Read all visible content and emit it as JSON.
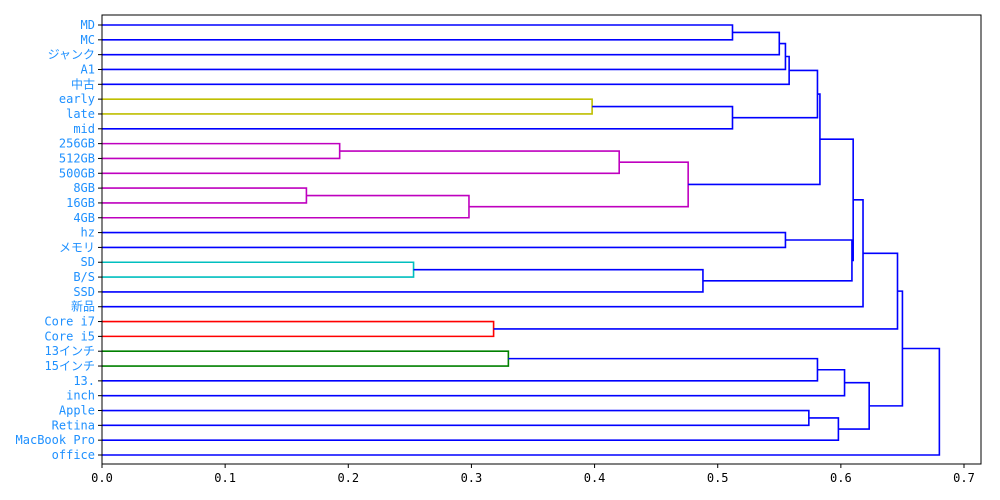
{
  "chart_data": {
    "type": "dendrogram",
    "orientation": "left",
    "title": "",
    "xlabel": "",
    "ylabel": "",
    "xlim": [
      0.0,
      0.714
    ],
    "xticks": [
      0.0,
      0.1,
      0.2,
      0.3,
      0.4,
      0.5,
      0.6,
      0.7
    ],
    "xtick_labels": [
      "0.0",
      "0.1",
      "0.2",
      "0.3",
      "0.4",
      "0.5",
      "0.6",
      "0.7"
    ],
    "leaf_label_color": "#1e90ff",
    "leaves": [
      "MD",
      "MC",
      "ジャンク",
      "A1",
      "中古",
      "early",
      "late",
      "mid",
      "256GB",
      "512GB",
      "500GB",
      "8GB",
      "16GB",
      "4GB",
      "hz",
      "メモリ",
      "SD",
      "B/S",
      "SSD",
      "新品",
      "Core i7",
      "Core i5",
      "13インチ",
      "15インチ",
      "13.",
      "inch",
      "Apple",
      "Retina",
      "MacBook Pro",
      "office"
    ],
    "colors": {
      "default": "#0000ff",
      "yellow": "#bfbf00",
      "magenta": "#bf00bf",
      "cyan": "#00bfbf",
      "red": "#ff0000",
      "green": "#008000"
    },
    "merges": [
      {
        "id": "c0",
        "left": "MD",
        "right": "MC",
        "height": 0.512,
        "color": "default"
      },
      {
        "id": "c1",
        "left": "c0",
        "right": "ジャンク",
        "height": 0.55,
        "color": "default"
      },
      {
        "id": "c2",
        "left": "c1",
        "right": "A1",
        "height": 0.555,
        "color": "default"
      },
      {
        "id": "c3",
        "left": "c2",
        "right": "中古",
        "height": 0.558,
        "color": "default"
      },
      {
        "id": "c4",
        "left": "early",
        "right": "late",
        "height": 0.398,
        "color": "yellow"
      },
      {
        "id": "c5",
        "left": "c4",
        "right": "mid",
        "height": 0.512,
        "color": "default"
      },
      {
        "id": "c6",
        "left": "c3",
        "right": "c5",
        "height": 0.581,
        "color": "default"
      },
      {
        "id": "c7",
        "left": "256GB",
        "right": "512GB",
        "height": 0.193,
        "color": "magenta"
      },
      {
        "id": "c8",
        "left": "c7",
        "right": "500GB",
        "height": 0.42,
        "color": "magenta"
      },
      {
        "id": "c9",
        "left": "8GB",
        "right": "16GB",
        "height": 0.166,
        "color": "magenta"
      },
      {
        "id": "c10",
        "left": "c9",
        "right": "4GB",
        "height": 0.298,
        "color": "magenta"
      },
      {
        "id": "c11",
        "left": "c8",
        "right": "c10",
        "height": 0.476,
        "color": "magenta"
      },
      {
        "id": "c12",
        "left": "c6",
        "right": "c11",
        "height": 0.583,
        "color": "default"
      },
      {
        "id": "c13",
        "left": "hz",
        "right": "メモリ",
        "height": 0.555,
        "color": "default"
      },
      {
        "id": "c14",
        "left": "SD",
        "right": "B/S",
        "height": 0.253,
        "color": "cyan"
      },
      {
        "id": "c15",
        "left": "c14",
        "right": "SSD",
        "height": 0.488,
        "color": "default"
      },
      {
        "id": "c16",
        "left": "c13",
        "right": "c15",
        "height": 0.609,
        "color": "default"
      },
      {
        "id": "c17",
        "left": "c12",
        "right": "c16",
        "height": 0.61,
        "color": "default"
      },
      {
        "id": "c18",
        "left": "c17",
        "right": "新品",
        "height": 0.618,
        "color": "default"
      },
      {
        "id": "c19",
        "left": "Core i7",
        "right": "Core i5",
        "height": 0.318,
        "color": "red"
      },
      {
        "id": "c20",
        "left": "c18",
        "right": "c19",
        "height": 0.646,
        "color": "default"
      },
      {
        "id": "c21",
        "left": "13インチ",
        "right": "15インチ",
        "height": 0.33,
        "color": "green"
      },
      {
        "id": "c22",
        "left": "c21",
        "right": "13.",
        "height": 0.581,
        "color": "default"
      },
      {
        "id": "c23",
        "left": "c22",
        "right": "inch",
        "height": 0.603,
        "color": "default"
      },
      {
        "id": "c24",
        "left": "Apple",
        "right": "Retina",
        "height": 0.574,
        "color": "default"
      },
      {
        "id": "c25",
        "left": "c24",
        "right": "MacBook Pro",
        "height": 0.598,
        "color": "default"
      },
      {
        "id": "c26",
        "left": "c23",
        "right": "c25",
        "height": 0.623,
        "color": "default"
      },
      {
        "id": "c27",
        "left": "c20",
        "right": "c26",
        "height": 0.65,
        "color": "default"
      },
      {
        "id": "c28",
        "left": "c27",
        "right": "office",
        "height": 0.68,
        "color": "default"
      }
    ],
    "grid": false,
    "legend": null
  }
}
